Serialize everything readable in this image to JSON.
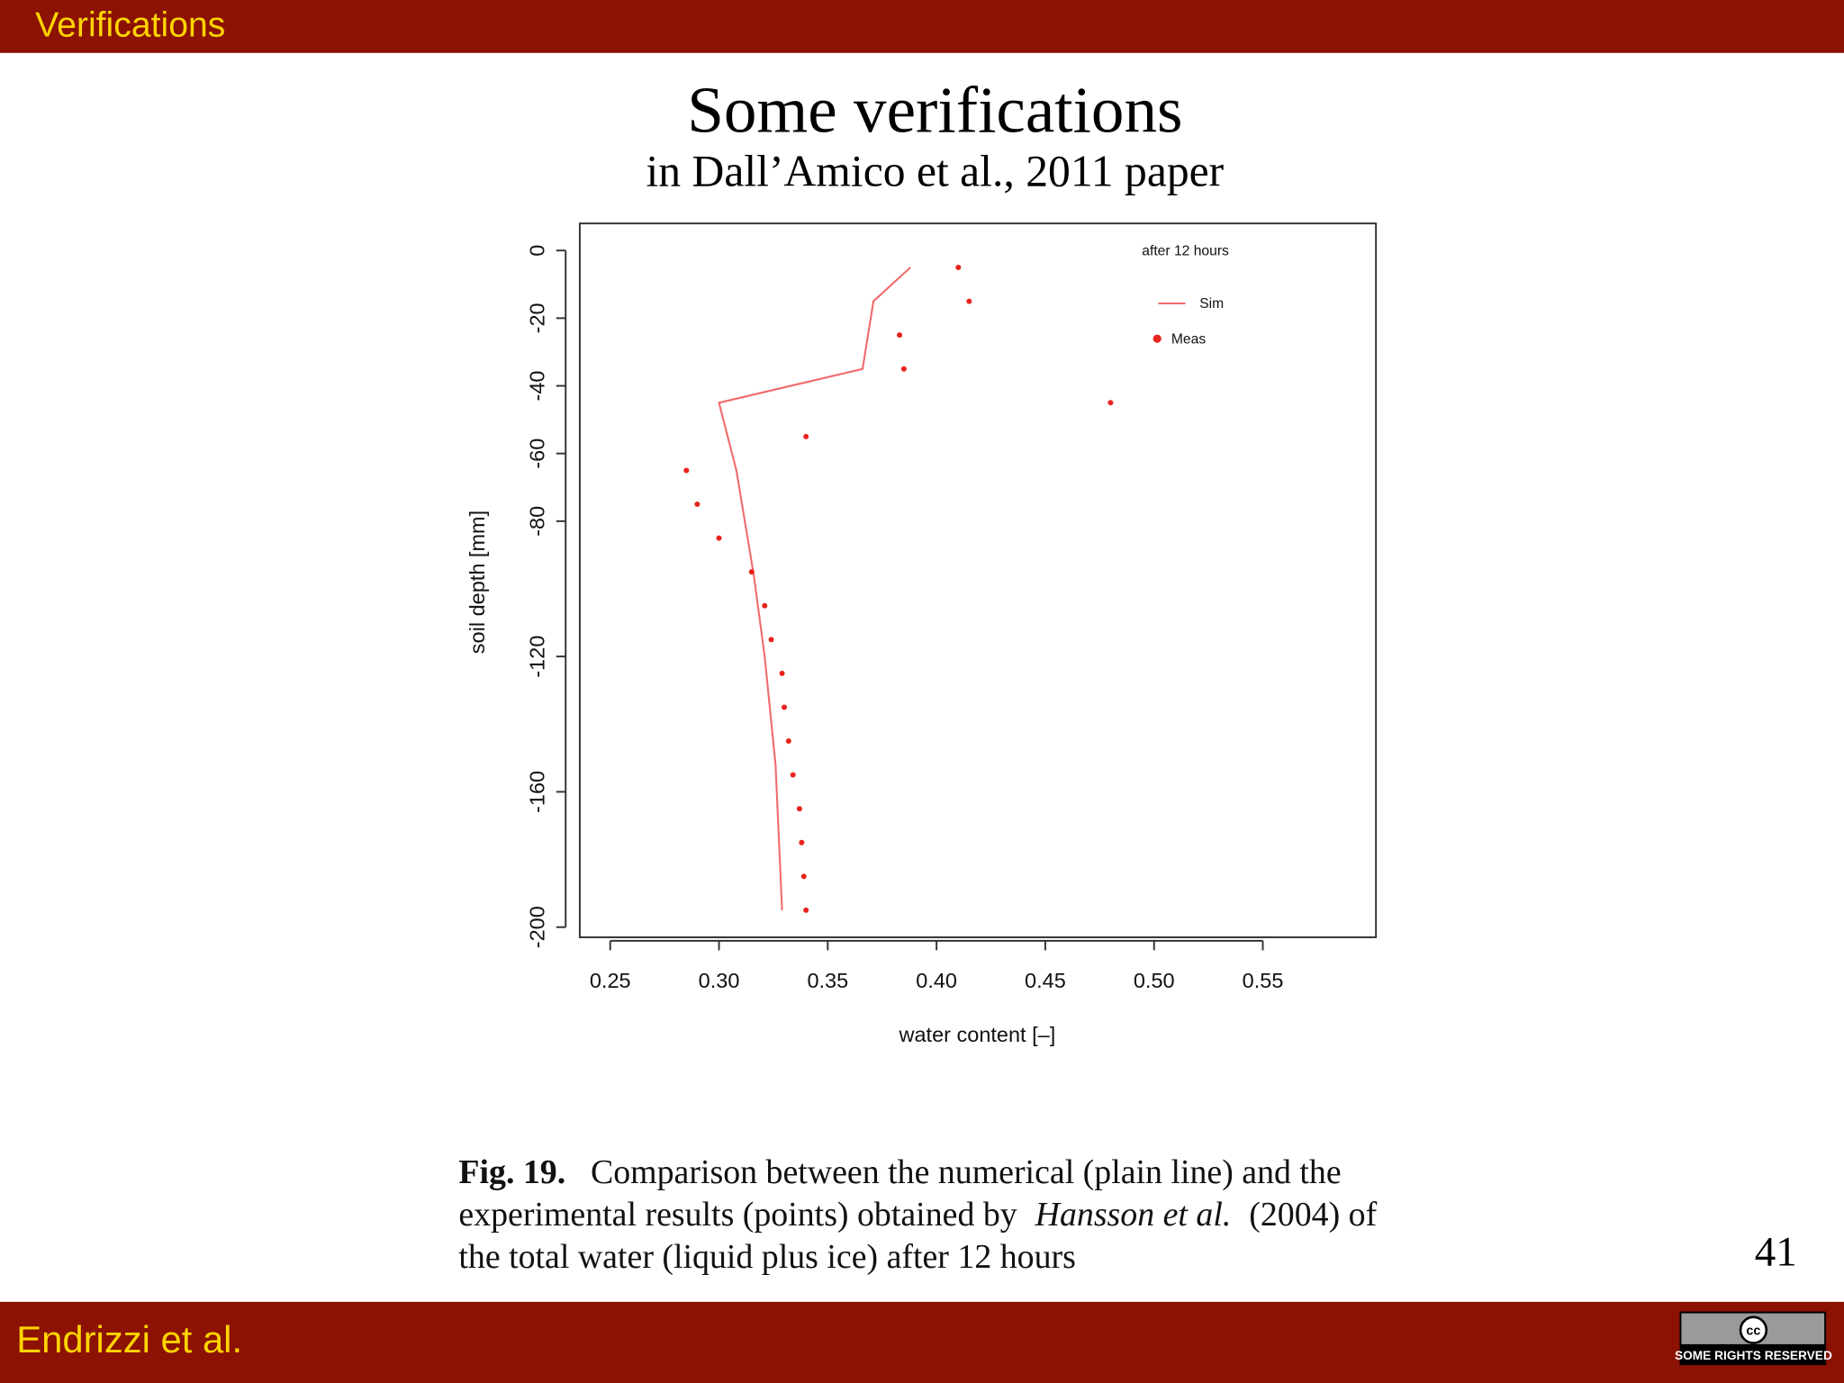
{
  "header": {
    "title": "Verifications"
  },
  "slide": {
    "title": "Some verifications",
    "subtitle": "in Dall’Amico et al., 2011 paper",
    "page_number": "41"
  },
  "caption": {
    "label": "Fig. 19.",
    "line1": "Comparison between the numerical (plain line) and the",
    "line2a": "experimental results (points) obtained by",
    "line2b": "Hansson et al.",
    "line2c": "(2004) of",
    "line3": "the total water (liquid plus ice) after 12 hours"
  },
  "footer": {
    "author": "Endrizzi et al.",
    "badge_icon": "cc",
    "badge_text": "SOME RIGHTS RESERVED"
  },
  "chart_data": {
    "type": "line",
    "x_label": "water content [–]",
    "y_label": "soil depth [mm]",
    "legend_title": "after 12 hours",
    "legend": "upper right",
    "xlim": [
      0.236,
      0.602
    ],
    "ylim": [
      -203,
      8
    ],
    "xticks": [
      {
        "value": 0.25,
        "label": "0.25"
      },
      {
        "value": 0.3,
        "label": "0.30"
      },
      {
        "value": 0.35,
        "label": "0.35"
      },
      {
        "value": 0.4,
        "label": "0.40"
      },
      {
        "value": 0.45,
        "label": "0.45"
      },
      {
        "value": 0.5,
        "label": "0.50"
      },
      {
        "value": 0.55,
        "label": "0.55"
      }
    ],
    "yticks": [
      0,
      -20,
      -40,
      -60,
      -80,
      -120,
      -160,
      -200
    ],
    "series": [
      {
        "name": "Sim",
        "mode": "line",
        "color": "#f26b6b",
        "x": [
          0.388,
          0.371,
          0.366,
          0.3,
          0.308,
          0.316,
          0.321,
          0.326,
          0.329
        ],
        "values": [
          -5,
          -15,
          -35,
          -45,
          -65,
          -96,
          -120,
          -152,
          -195
        ]
      },
      {
        "name": "Meas",
        "mode": "points",
        "color": "#e8231c",
        "x": [
          0.41,
          0.415,
          0.383,
          0.385,
          0.48,
          0.34,
          0.285,
          0.29,
          0.3,
          0.315,
          0.321,
          0.324,
          0.329,
          0.33,
          0.332,
          0.334,
          0.337,
          0.338,
          0.339,
          0.34
        ],
        "values": [
          -5,
          -15,
          -25,
          -35,
          -45,
          -55,
          -65,
          -75,
          -85,
          -95,
          -105,
          -115,
          -125,
          -135,
          -145,
          -155,
          -165,
          -175,
          -185,
          -195
        ]
      }
    ]
  }
}
